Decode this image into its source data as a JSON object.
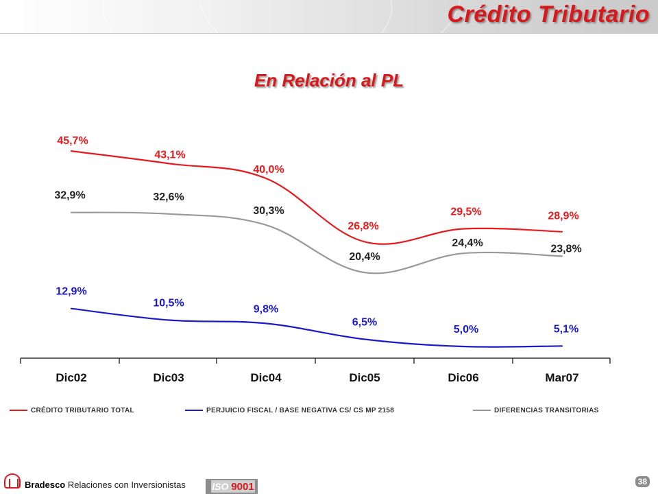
{
  "header": {
    "title": "Crédito Tributario"
  },
  "subtitle": "En Relación al PL",
  "chart_data": {
    "type": "line",
    "categories": [
      "Dic02",
      "Dic03",
      "Dic04",
      "Dic05",
      "Dic06",
      "Mar07"
    ],
    "series": [
      {
        "name": "CRÉDITO TRIBUTARIO TOTAL",
        "color": "#e8191c",
        "values": [
          45.7,
          43.1,
          40.0,
          26.8,
          29.5,
          28.9
        ],
        "labels": [
          "45,7%",
          "43,1%",
          "40,0%",
          "26,8%",
          "29,5%",
          "28,9%"
        ]
      },
      {
        "name": "DIFERENCIAS TRANSITORIAS",
        "color": "#999999",
        "values": [
          32.9,
          32.6,
          30.3,
          20.4,
          24.4,
          23.8
        ],
        "labels": [
          "32,9%",
          "32,6%",
          "30,3%",
          "20,4%",
          "24,4%",
          "23,8%"
        ]
      },
      {
        "name": "PERJUICIO FISCAL / BASE NEGATIVA CS/ CS MP 2158",
        "color": "#1a1acc",
        "values": [
          12.9,
          10.5,
          9.8,
          6.5,
          5.0,
          5.1
        ],
        "labels": [
          "12,9%",
          "10,5%",
          "9,8%",
          "6,5%",
          "5,0%",
          "5,1%"
        ]
      }
    ],
    "ylim": [
      0,
      50
    ],
    "grid": false,
    "legend_position": "bottom"
  },
  "legend": {
    "items": [
      {
        "label": "CRÉDITO TRIBUTARIO TOTAL",
        "color": "#e8191c"
      },
      {
        "label": "PERJUICIO FISCAL / BASE NEGATIVA CS/ CS MP 2158",
        "color": "#1a1acc"
      },
      {
        "label": "DIFERENCIAS TRANSITORIAS",
        "color": "#999999"
      }
    ]
  },
  "footer": {
    "brand": "Bradesco",
    "text": "Relaciones con Inversionistas",
    "iso_prefix": "ISO",
    "iso_number": "9001",
    "page_number": "38"
  }
}
